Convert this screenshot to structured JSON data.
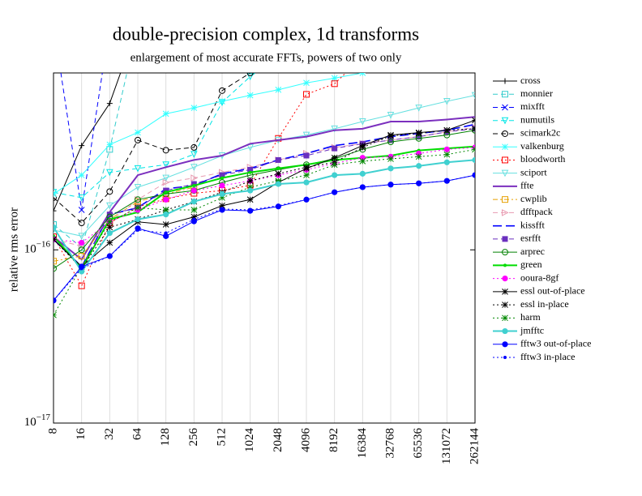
{
  "chart_data": {
    "type": "line",
    "title": "double-precision complex, 1d transforms",
    "subtitle": "enlargement of most accurate FFTs, powers of two only",
    "ylabel": "relative rms error",
    "log_y": true,
    "grid": true,
    "legend": "right",
    "categories": [
      "8",
      "16",
      "32",
      "64",
      "128",
      "256",
      "512",
      "1024",
      "2048",
      "4096",
      "8192",
      "16384",
      "32768",
      "65536",
      "131072",
      "262144"
    ],
    "ylim": [
      1e-17,
      1.05e-15
    ],
    "yticks": [
      {
        "value": 1e-17,
        "label": "10−17"
      },
      {
        "value": 1e-16,
        "label": "10−16"
      }
    ],
    "series": [
      {
        "name": "cross",
        "color": "#000000",
        "dash": "solid",
        "marker": "plus",
        "values": [
          1.68e-16,
          4e-16,
          7e-16,
          2e-15,
          null,
          null,
          null,
          null,
          null,
          null,
          null,
          null,
          null,
          null,
          null,
          null
        ]
      },
      {
        "name": "monnier",
        "color": "#33cccc",
        "dash": "dashed",
        "marker": "square",
        "values": [
          1.4e-16,
          1.03e-16,
          3.8e-16,
          2e-15,
          null,
          null,
          null,
          null,
          null,
          null,
          null,
          null,
          null,
          null,
          null,
          null
        ]
      },
      {
        "name": "mixfft",
        "color": "#0000ff",
        "dash": "dashed",
        "marker": "x",
        "values": [
          2e-15,
          1.7e-16,
          2e-15,
          null,
          null,
          null,
          null,
          null,
          null,
          null,
          null,
          null,
          null,
          null,
          null,
          null
        ]
      },
      {
        "name": "numutils",
        "color": "#00e5e5",
        "dash": "dashed",
        "marker": "triangle-down",
        "values": [
          2.15e-16,
          2e-16,
          2.8e-16,
          2.95e-16,
          3.1e-16,
          3.56e-16,
          7.1e-16,
          1e-15,
          1.3e-15,
          null,
          null,
          null,
          null,
          null,
          null,
          null
        ]
      },
      {
        "name": "scimark2c",
        "color": "#000000",
        "dash": "dashed",
        "marker": "circle",
        "values": [
          2e-16,
          1.43e-16,
          2.17e-16,
          4.3e-16,
          3.76e-16,
          3.9e-16,
          8.3e-16,
          1.05e-15,
          1.3e-15,
          null,
          null,
          null,
          null,
          null,
          null,
          null
        ]
      },
      {
        "name": "valkenburg",
        "color": "#33ffff",
        "dash": "solid",
        "marker": "star",
        "values": [
          2.1e-16,
          2.7e-16,
          4.05e-16,
          4.76e-16,
          6.1e-16,
          6.6e-16,
          7.2e-16,
          7.8e-16,
          8.4e-16,
          9.2e-16,
          9.8e-16,
          1.05e-15,
          null,
          null,
          null,
          null
        ]
      },
      {
        "name": "bloodworth",
        "color": "#ff0000",
        "dash": "dotted",
        "marker": "square",
        "values": [
          1.19e-16,
          6.2e-17,
          1.43e-16,
          1.77e-16,
          1.97e-16,
          2.12e-16,
          2.2e-16,
          2.36e-16,
          4.4e-16,
          7.9e-16,
          9.1e-16,
          1.3e-15,
          null,
          null,
          null,
          null
        ]
      },
      {
        "name": "sciport",
        "color": "#66e0e0",
        "dash": "solid",
        "marker": "triangle-down",
        "values": [
          1.3e-16,
          1.2e-16,
          1.8e-16,
          2.3e-16,
          2.6e-16,
          3e-16,
          3.5e-16,
          3.9e-16,
          4.3e-16,
          4.6e-16,
          5e-16,
          5.5e-16,
          6e-16,
          6.6e-16,
          7.2e-16,
          7.8e-16
        ]
      },
      {
        "name": "ffte",
        "color": "#7b2fbe",
        "dash": "solid",
        "marker": "none",
        "width": 2,
        "values": [
          1.19e-16,
          8.8e-17,
          1.65e-16,
          2.7e-16,
          3e-16,
          3.3e-16,
          3.5e-16,
          4.1e-16,
          4.3e-16,
          4.5e-16,
          4.9e-16,
          5e-16,
          5.5e-16,
          5.5e-16,
          5.65e-16,
          5.85e-16
        ]
      },
      {
        "name": "cwplib",
        "color": "#e6a000",
        "dash": "dashdot",
        "marker": "square",
        "values": [
          8.6e-17,
          9.2e-17,
          1.5e-16,
          1.9e-16,
          2.1e-16,
          2.3e-16,
          null,
          null,
          null,
          null,
          null,
          null,
          null,
          null,
          null,
          null
        ]
      },
      {
        "name": "dfftpack",
        "color": "#e89ab0",
        "dash": "dashed",
        "marker": "triangle-right",
        "values": [
          1.15e-16,
          1.05e-16,
          1.45e-16,
          1.95e-16,
          2.45e-16,
          2.6e-16,
          2.8e-16,
          3e-16,
          3.3e-16,
          3.6e-16,
          3.9e-16,
          4.1e-16,
          4.3e-16,
          4.5e-16,
          4.8e-16,
          5.1e-16
        ]
      },
      {
        "name": "kissfft",
        "color": "#0000ff",
        "dash": "longdash",
        "marker": "none",
        "width": 1.6,
        "values": [
          1.15e-16,
          8e-17,
          1.6e-16,
          1.75e-16,
          2.25e-16,
          2.35e-16,
          2.75e-16,
          2.95e-16,
          3.3e-16,
          3.6e-16,
          4e-16,
          4.2e-16,
          4.5e-16,
          4.7e-16,
          4.9e-16,
          5.3e-16
        ]
      },
      {
        "name": "esrfft",
        "color": "#6a2fbe",
        "dash": "dashed",
        "marker": "square-filled",
        "values": [
          1.15e-16,
          8e-17,
          1.6e-16,
          1.75e-16,
          2.2e-16,
          2.4e-16,
          2.7e-16,
          2.9e-16,
          3.3e-16,
          3.5e-16,
          3.85e-16,
          4.1e-16,
          4.3e-16,
          4.5e-16,
          4.8e-16,
          5e-16
        ]
      },
      {
        "name": "arprec",
        "color": "#008000",
        "dash": "solid",
        "marker": "circle",
        "values": [
          7.8e-17,
          1e-16,
          1.55e-16,
          1.95e-16,
          2.1e-16,
          2.2e-16,
          2.45e-16,
          2.7e-16,
          2.9e-16,
          3.1e-16,
          3.35e-16,
          3.8e-16,
          4.2e-16,
          4.4e-16,
          4.6e-16,
          4.9e-16
        ]
      },
      {
        "name": "green",
        "color": "#00dd00",
        "dash": "solid",
        "marker": "dot",
        "width": 2,
        "values": [
          1.2e-16,
          7.8e-17,
          1.5e-16,
          1.65e-16,
          2.15e-16,
          2.35e-16,
          2.6e-16,
          2.8e-16,
          2.95e-16,
          3.1e-16,
          3.3e-16,
          3.4e-16,
          3.5e-16,
          3.75e-16,
          3.85e-16,
          3.95e-16
        ]
      },
      {
        "name": "ooura-8gf",
        "color": "#ff00ff",
        "dash": "dotted",
        "marker": "big-dot",
        "values": [
          1.15e-16,
          1.1e-16,
          1.45e-16,
          1.7e-16,
          1.95e-16,
          2.2e-16,
          2.35e-16,
          2.5e-16,
          2.7e-16,
          2.9e-16,
          3.15e-16,
          3.4e-16,
          3.45e-16,
          3.6e-16,
          3.8e-16,
          3.9e-16
        ]
      },
      {
        "name": "essl out-of-place",
        "color": "#000000",
        "dash": "solid",
        "marker": "star",
        "values": [
          1.15e-16,
          8e-17,
          1.1e-16,
          1.45e-16,
          1.4e-16,
          1.55e-16,
          1.8e-16,
          1.95e-16,
          2.45e-16,
          2.95e-16,
          3.4e-16,
          4e-16,
          4.6e-16,
          4.75e-16,
          4.9e-16,
          5.6e-16
        ]
      },
      {
        "name": "essl in-place",
        "color": "#000000",
        "dash": "dotted",
        "marker": "star",
        "values": [
          1.15e-16,
          7.8e-17,
          1.35e-16,
          1.5e-16,
          1.7e-16,
          1.9e-16,
          2.15e-16,
          2.5e-16,
          2.75e-16,
          3e-16,
          3.2e-16,
          3.9e-16,
          4.55e-16,
          4.7e-16,
          4.9e-16,
          5e-16
        ]
      },
      {
        "name": "harm",
        "color": "#008800",
        "dash": "dotted",
        "marker": "star",
        "values": [
          4.2e-17,
          8e-17,
          1.45e-16,
          1.75e-16,
          1.7e-16,
          1.7e-16,
          2e-16,
          2.3e-16,
          2.5e-16,
          2.7e-16,
          3.1e-16,
          3.25e-16,
          3.35e-16,
          3.45e-16,
          3.55e-16,
          3.8e-16
        ]
      },
      {
        "name": "jmfftc",
        "color": "#40d0d0",
        "dash": "solid",
        "marker": "big-dot",
        "width": 2,
        "values": [
          1.35e-16,
          7.5e-17,
          1.25e-16,
          1.5e-16,
          1.6e-16,
          1.9e-16,
          2.1e-16,
          2.2e-16,
          2.4e-16,
          2.45e-16,
          2.7e-16,
          2.75e-16,
          2.95e-16,
          3.05e-16,
          3.2e-16,
          3.3e-16
        ]
      },
      {
        "name": "fftw3 out-of-place",
        "color": "#0000ff",
        "dash": "solid",
        "marker": "big-dot",
        "values": [
          5.1e-17,
          8e-17,
          9.2e-17,
          1.33e-16,
          1.2e-16,
          1.46e-16,
          1.7e-16,
          1.68e-16,
          1.78e-16,
          1.95e-16,
          2.15e-16,
          2.3e-16,
          2.38e-16,
          2.42e-16,
          2.5e-16,
          2.7e-16
        ]
      },
      {
        "name": "fftw3 in-place",
        "color": "#0000ff",
        "dash": "dotted",
        "marker": "dot",
        "values": [
          5.1e-17,
          7.8e-17,
          9.2e-17,
          1.3e-16,
          1.25e-16,
          1.5e-16,
          1.72e-16,
          1.7e-16,
          1.8e-16,
          1.95e-16,
          2.15e-16,
          2.3e-16,
          2.38e-16,
          2.42e-16,
          2.5e-16,
          2.7e-16
        ]
      }
    ]
  }
}
